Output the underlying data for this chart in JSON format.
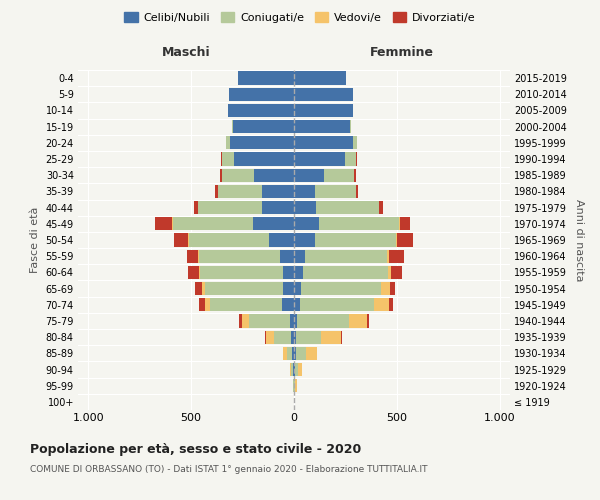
{
  "age_groups": [
    "100+",
    "95-99",
    "90-94",
    "85-89",
    "80-84",
    "75-79",
    "70-74",
    "65-69",
    "60-64",
    "55-59",
    "50-54",
    "45-49",
    "40-44",
    "35-39",
    "30-34",
    "25-29",
    "20-24",
    "15-19",
    "10-14",
    "5-9",
    "0-4"
  ],
  "birth_years": [
    "≤ 1919",
    "1920-1924",
    "1925-1929",
    "1930-1934",
    "1935-1939",
    "1940-1944",
    "1945-1949",
    "1950-1954",
    "1955-1959",
    "1960-1964",
    "1965-1969",
    "1970-1974",
    "1975-1979",
    "1980-1984",
    "1985-1989",
    "1990-1994",
    "1995-1999",
    "2000-2004",
    "2005-2009",
    "2010-2014",
    "2015-2019"
  ],
  "maschi": {
    "celibi": [
      0,
      2,
      5,
      8,
      15,
      20,
      60,
      55,
      55,
      70,
      120,
      200,
      155,
      155,
      195,
      290,
      310,
      295,
      320,
      315,
      270
    ],
    "coniugati": [
      0,
      3,
      10,
      25,
      80,
      200,
      350,
      380,
      400,
      390,
      390,
      390,
      310,
      215,
      155,
      60,
      20,
      5,
      0,
      0,
      0
    ],
    "vedovi": [
      0,
      2,
      5,
      20,
      40,
      35,
      25,
      10,
      5,
      5,
      5,
      5,
      0,
      0,
      0,
      0,
      0,
      0,
      0,
      0,
      0
    ],
    "divorziati": [
      0,
      0,
      0,
      0,
      5,
      10,
      25,
      35,
      55,
      55,
      70,
      80,
      20,
      15,
      10,
      5,
      0,
      0,
      0,
      0,
      0
    ]
  },
  "femmine": {
    "nubili": [
      0,
      2,
      5,
      8,
      10,
      15,
      30,
      35,
      45,
      55,
      100,
      120,
      105,
      100,
      145,
      250,
      285,
      270,
      285,
      285,
      255
    ],
    "coniugate": [
      0,
      5,
      15,
      50,
      120,
      250,
      360,
      390,
      410,
      395,
      395,
      390,
      310,
      200,
      145,
      50,
      20,
      5,
      0,
      0,
      0
    ],
    "vedove": [
      0,
      8,
      20,
      55,
      100,
      90,
      70,
      40,
      15,
      10,
      5,
      5,
      0,
      0,
      0,
      0,
      0,
      0,
      0,
      0,
      0
    ],
    "divorziate": [
      0,
      0,
      0,
      0,
      5,
      10,
      20,
      25,
      55,
      75,
      80,
      50,
      20,
      10,
      10,
      5,
      0,
      0,
      0,
      0,
      0
    ]
  },
  "colors": {
    "celibi": "#4472a8",
    "coniugati": "#b5c99a",
    "vedovi": "#f5c36a",
    "divorziati": "#c0392b"
  },
  "title": "Popolazione per età, sesso e stato civile - 2020",
  "subtitle": "COMUNE DI ORBASSANO (TO) - Dati ISTAT 1° gennaio 2020 - Elaborazione TUTTITALIA.IT",
  "ylabel_left": "Fasce di età",
  "ylabel_right": "Anni di nascita",
  "xlabel_maschi": "Maschi",
  "xlabel_femmine": "Femmine",
  "legend_labels": [
    "Celibi/Nubili",
    "Coniugati/e",
    "Vedovi/e",
    "Divorziati/e"
  ],
  "xlim": 1050,
  "background_color": "#f5f5f0"
}
